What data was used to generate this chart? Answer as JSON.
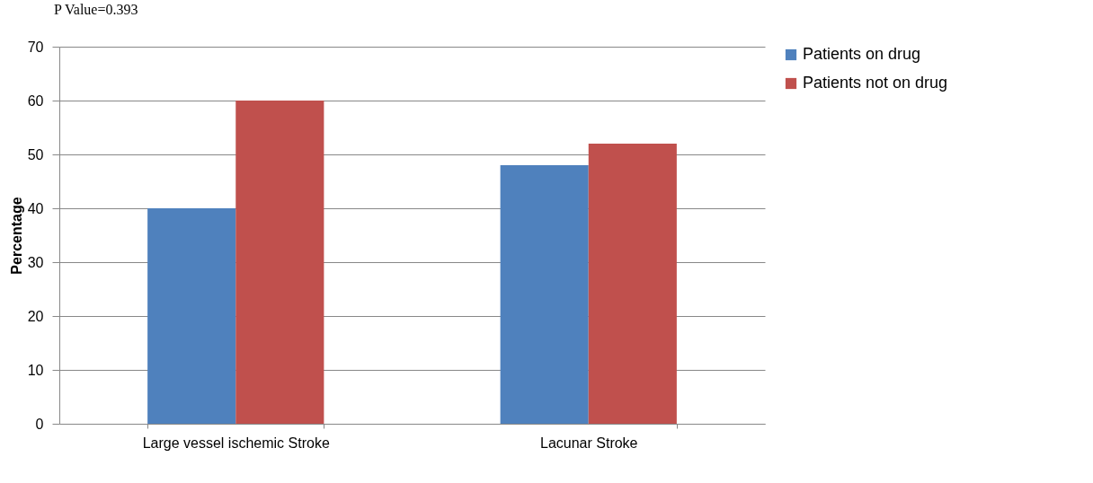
{
  "chart_data": {
    "type": "bar",
    "ylabel": "Percentage",
    "categories": [
      "Large vessel ischemic Stroke",
      "Lacunar Stroke"
    ],
    "series": [
      {
        "name": "Patients on drug",
        "color": "#4f81bd",
        "values": [
          40,
          48
        ]
      },
      {
        "name": "Patients not on drug",
        "color": "#c0504d",
        "values": [
          60,
          52
        ]
      }
    ],
    "ylim": [
      0,
      70
    ],
    "yticks": [
      0,
      10,
      20,
      30,
      40,
      50,
      60,
      70
    ],
    "grid": "y",
    "legend": "right",
    "annotations": [
      "P Value=0.393"
    ]
  }
}
